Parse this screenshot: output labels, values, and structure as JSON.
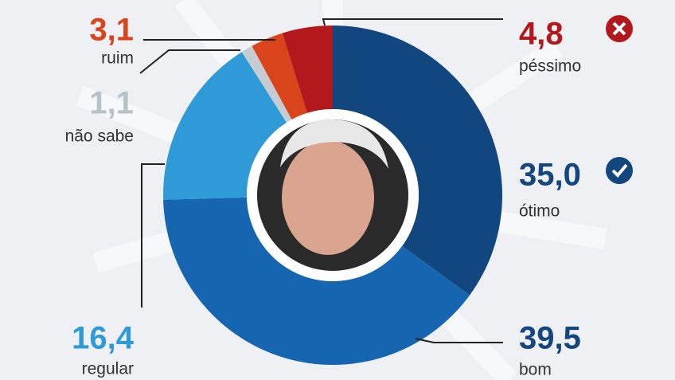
{
  "chart_data": {
    "type": "donut",
    "categories": [
      "ótimo",
      "bom",
      "regular",
      "não sabe",
      "ruim",
      "péssimo"
    ],
    "values": [
      35.0,
      39.5,
      16.4,
      1.1,
      3.1,
      4.8
    ],
    "value_labels": [
      "35,0",
      "39,5",
      "16,4",
      "1,1",
      "3,1",
      "4,8"
    ],
    "colors": [
      "#12467f",
      "#1565b0",
      "#2f9ad8",
      "#c5cdd3",
      "#d9441a",
      "#b3191c"
    ]
  }
}
